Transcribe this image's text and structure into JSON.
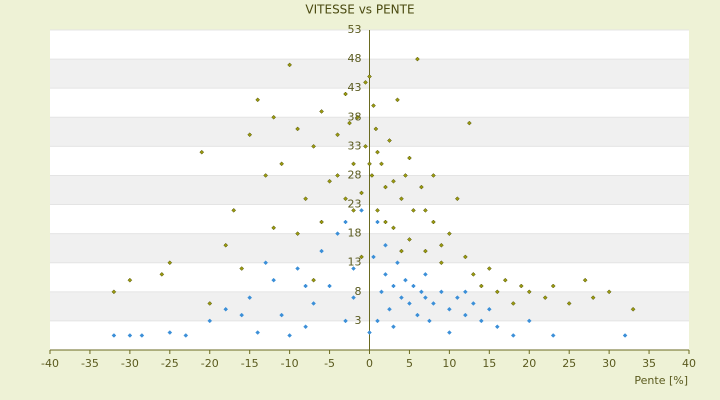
{
  "chart_data": {
    "type": "scatter",
    "title": "VITESSE vs PENTE",
    "x_label": "Pente [%]",
    "xlim": [
      -40,
      40
    ],
    "xticks": [
      -40,
      -35,
      -30,
      -25,
      -20,
      -15,
      -10,
      -5,
      0,
      5,
      10,
      15,
      20,
      25,
      30,
      35,
      40
    ],
    "ylim": [
      -2,
      53
    ],
    "yticks": [
      3,
      8,
      13,
      18,
      23,
      28,
      33,
      38,
      43,
      48,
      53
    ],
    "grid": true,
    "series": [
      {
        "color": "#3b8fd8",
        "x": [
          -32,
          -30,
          -28.5,
          -23,
          -20,
          -18,
          -15,
          -14,
          -12,
          -11,
          -10,
          -9,
          -8,
          -7,
          -6,
          -5,
          -4,
          -3,
          -2,
          -1,
          0,
          0.5,
          1,
          1.5,
          2,
          2.5,
          3,
          3.5,
          4,
          4.5,
          5,
          5.5,
          6,
          6.5,
          7,
          7.5,
          8,
          9,
          10,
          11,
          12,
          13,
          14,
          15,
          16,
          18,
          20,
          23,
          -25,
          -13,
          -16,
          -8,
          -3,
          2,
          3,
          10,
          12,
          7,
          -2,
          1,
          32
        ],
        "values": [
          0.5,
          0.5,
          0.5,
          0.5,
          3,
          5,
          7,
          1,
          10,
          4,
          0.5,
          12,
          2,
          6,
          15,
          9,
          18,
          3,
          12,
          22,
          1,
          14,
          20,
          8,
          11,
          5,
          9,
          13,
          7,
          10,
          6,
          9,
          4,
          8,
          7,
          3,
          6,
          8,
          5,
          7,
          4,
          6,
          3,
          5,
          2,
          0.5,
          3,
          0.5,
          1,
          13,
          4,
          9,
          20,
          16,
          2,
          1,
          8,
          11,
          7,
          3,
          0.5
        ]
      },
      {
        "color": "#9a9a10",
        "x": [
          -32,
          -30,
          -26,
          -25,
          -21,
          -18,
          -17,
          -15,
          -14,
          -13,
          -12,
          -11,
          -10,
          -9,
          -8,
          -7,
          -6,
          -5,
          -4,
          -3,
          -2,
          -1.5,
          -1,
          -0.5,
          0,
          0.3,
          0.8,
          1,
          1.5,
          2,
          2.5,
          3,
          3.5,
          4,
          4.5,
          5,
          5.5,
          6,
          6.5,
          7,
          8,
          9,
          10,
          11,
          12.5,
          12,
          13,
          14,
          15,
          16,
          17,
          18,
          19,
          20,
          22,
          23,
          25,
          27,
          28,
          30,
          33,
          -20,
          -9,
          -6,
          -4,
          -2,
          0,
          1,
          2,
          3,
          -3,
          5,
          7,
          4,
          9,
          -1,
          -7,
          -12,
          -16,
          0.5,
          -0.5,
          -2.5,
          8
        ],
        "values": [
          8,
          10,
          11,
          13,
          32,
          16,
          22,
          35,
          41,
          28,
          38,
          30,
          47,
          36,
          24,
          33,
          39,
          27,
          35,
          42,
          30,
          38,
          25,
          33,
          45,
          28,
          36,
          22,
          30,
          26,
          34,
          19,
          41,
          24,
          28,
          17,
          22,
          48,
          26,
          15,
          20,
          13,
          18,
          24,
          37,
          14,
          11,
          9,
          12,
          8,
          10,
          6,
          9,
          8,
          7,
          9,
          6,
          10,
          7,
          8,
          5,
          6,
          18,
          20,
          28,
          22,
          30,
          32,
          20,
          27,
          24,
          31,
          22,
          15,
          16,
          14,
          10,
          19,
          12,
          40,
          44,
          37,
          28
        ]
      }
    ]
  }
}
